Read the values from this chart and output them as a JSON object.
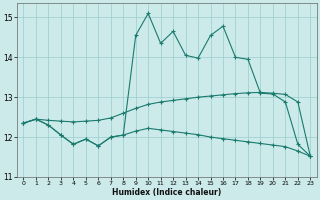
{
  "xlabel": "Humidex (Indice chaleur)",
  "bg_color": "#cceaea",
  "line_color": "#1a7a6e",
  "grid_color": "#99cccc",
  "xlim": [
    -0.5,
    23.5
  ],
  "ylim": [
    11.0,
    15.35
  ],
  "yticks": [
    11,
    12,
    13,
    14,
    15
  ],
  "xticks": [
    0,
    1,
    2,
    3,
    4,
    5,
    6,
    7,
    8,
    9,
    10,
    11,
    12,
    13,
    14,
    15,
    16,
    17,
    18,
    19,
    20,
    21,
    22,
    23
  ],
  "line1_x": [
    0,
    1,
    2,
    3,
    4,
    5,
    6,
    7,
    8,
    9,
    10,
    11,
    12,
    13,
    14,
    15,
    16,
    17,
    18,
    19,
    20,
    21,
    22,
    23
  ],
  "line1_y": [
    12.35,
    12.45,
    12.3,
    12.05,
    11.82,
    11.95,
    11.78,
    12.0,
    12.05,
    14.55,
    15.1,
    14.35,
    14.65,
    14.05,
    13.98,
    14.55,
    14.78,
    14.0,
    13.95,
    13.1,
    13.08,
    12.88,
    11.82,
    11.52
  ],
  "line2_x": [
    0,
    1,
    2,
    3,
    4,
    5,
    6,
    7,
    8,
    9,
    10,
    11,
    12,
    13,
    14,
    15,
    16,
    17,
    18,
    19,
    20,
    21,
    22,
    23
  ],
  "line2_y": [
    12.35,
    12.45,
    12.42,
    12.4,
    12.38,
    12.4,
    12.42,
    12.48,
    12.6,
    12.72,
    12.82,
    12.88,
    12.92,
    12.96,
    13.0,
    13.03,
    13.06,
    13.09,
    13.11,
    13.12,
    13.1,
    13.07,
    12.88,
    11.52
  ],
  "line3_x": [
    0,
    1,
    2,
    3,
    4,
    5,
    6,
    7,
    8,
    9,
    10,
    11,
    12,
    13,
    14,
    15,
    16,
    17,
    18,
    19,
    20,
    21,
    22,
    23
  ],
  "line3_y": [
    12.35,
    12.45,
    12.3,
    12.05,
    11.82,
    11.95,
    11.78,
    12.0,
    12.05,
    12.15,
    12.22,
    12.18,
    12.14,
    12.1,
    12.06,
    12.0,
    11.96,
    11.92,
    11.88,
    11.84,
    11.8,
    11.76,
    11.65,
    11.52
  ]
}
